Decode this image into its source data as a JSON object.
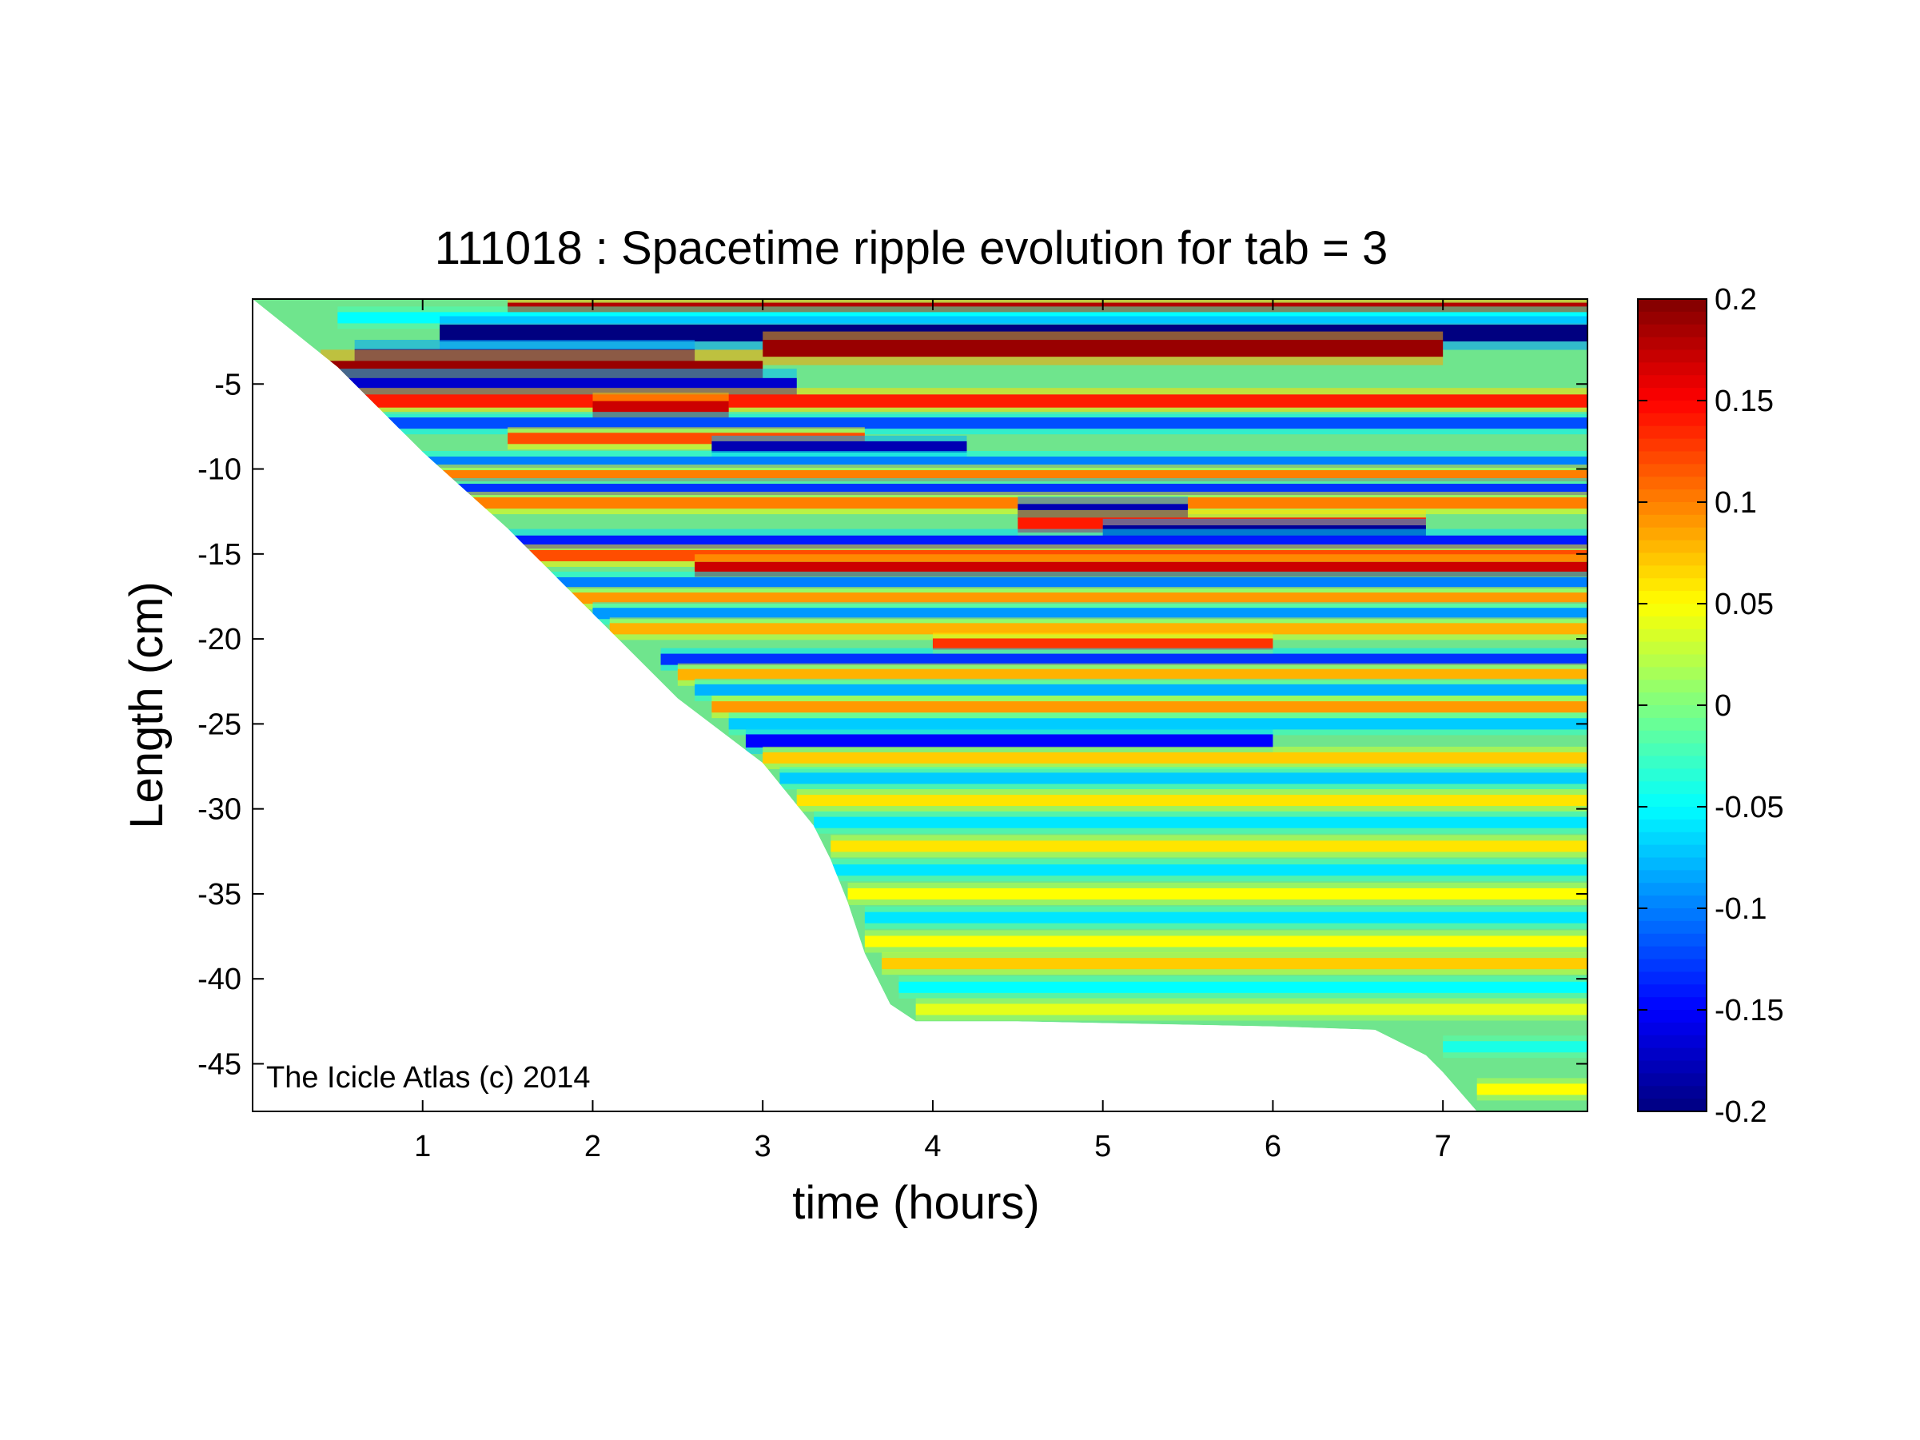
{
  "chart_data": {
    "type": "heatmap",
    "title": "111018 : Spacetime ripple evolution for tab = 3",
    "xlabel": "time (hours)",
    "ylabel": "Length (cm)",
    "xlim": [
      0,
      7.85
    ],
    "ylim": [
      -47.8,
      0
    ],
    "x_ticks": [
      1,
      2,
      3,
      4,
      5,
      6,
      7
    ],
    "x_tick_labels": [
      "1",
      "2",
      "3",
      "4",
      "5",
      "6",
      "7"
    ],
    "y_ticks": [
      -5,
      -10,
      -15,
      -20,
      -25,
      -30,
      -35,
      -40,
      -45
    ],
    "y_tick_labels": [
      "-5",
      "-10",
      "-15",
      "-20",
      "-25",
      "-30",
      "-35",
      "-40",
      "-45"
    ],
    "colorbar": {
      "colormap": "jet",
      "clim": [
        -0.2,
        0.2
      ],
      "ticks": [
        0.2,
        0.15,
        0.1,
        0.05,
        0,
        -0.05,
        -0.1,
        -0.15,
        -0.2
      ],
      "tick_labels": [
        "0.2",
        "0.15",
        "0.1",
        "0.05",
        "0",
        "-0.05",
        "-0.1",
        "-0.15",
        "-0.2"
      ]
    },
    "annotation": "The Icicle Atlas (c) 2014",
    "grid": false,
    "icicle_tip_boundary": {
      "time_hours": [
        0,
        0.5,
        1.0,
        1.5,
        2.0,
        2.5,
        3.0,
        3.3,
        3.4,
        3.5,
        3.6,
        3.75,
        3.9,
        4.5,
        6.0,
        6.6,
        6.9,
        7.0,
        7.2,
        7.85
      ],
      "length_cm": [
        0,
        -4.0,
        -9.0,
        -13.5,
        -18.5,
        -23.5,
        -27.3,
        -31.0,
        -33.0,
        -35.5,
        -38.5,
        -41.5,
        -42.5,
        -42.5,
        -42.8,
        -43.0,
        -44.5,
        -45.5,
        -47.8,
        -47.8
      ]
    },
    "colors": {
      "neutral": "#6fe58d",
      "positive_extreme": "#800000",
      "negative_extreme": "#00008f"
    },
    "ripple_bands": [
      {
        "y": -0.6,
        "value": 0.18,
        "width": 0.35,
        "t0": 1.5,
        "t1": 7.85
      },
      {
        "y": -1.1,
        "value": -0.05,
        "width": 0.3,
        "t0": 0.5,
        "t1": 7.85
      },
      {
        "y": -2.0,
        "value": -0.2,
        "width": 0.45,
        "t0": 1.1,
        "t1": 7.85
      },
      {
        "y": -2.9,
        "value": 0.19,
        "width": 0.45,
        "t0": 3.0,
        "t1": 7.0
      },
      {
        "y": -3.5,
        "value": -0.19,
        "width": 0.5,
        "t0": 0.6,
        "t1": 2.6
      },
      {
        "y": -4.3,
        "value": 0.19,
        "width": 0.6,
        "t0": 0.4,
        "t1": 3.0
      },
      {
        "y": -5.2,
        "value": -0.17,
        "width": 0.5,
        "t0": 0.5,
        "t1": 3.2
      },
      {
        "y": -6.0,
        "value": 0.14,
        "width": 0.35,
        "t0": 0.6,
        "t1": 7.85
      },
      {
        "y": -6.5,
        "value": 0.17,
        "width": 0.45,
        "t0": 2.0,
        "t1": 2.8
      },
      {
        "y": -7.3,
        "value": -0.12,
        "width": 0.3,
        "t0": 0.6,
        "t1": 7.85
      },
      {
        "y": -8.2,
        "value": 0.12,
        "width": 0.3,
        "t0": 1.5,
        "t1": 3.6
      },
      {
        "y": -8.7,
        "value": -0.18,
        "width": 0.3,
        "t0": 2.7,
        "t1": 4.2
      },
      {
        "y": -9.6,
        "value": -0.1,
        "width": 0.3,
        "t0": 0.8,
        "t1": 7.85
      },
      {
        "y": -10.4,
        "value": 0.1,
        "width": 0.3,
        "t0": 1.0,
        "t1": 7.85
      },
      {
        "y": -11.2,
        "value": -0.13,
        "width": 0.3,
        "t0": 1.0,
        "t1": 7.85
      },
      {
        "y": -12.0,
        "value": 0.1,
        "width": 0.3,
        "t0": 1.2,
        "t1": 7.85
      },
      {
        "y": -12.5,
        "value": -0.18,
        "width": 0.4,
        "t0": 4.5,
        "t1": 5.5
      },
      {
        "y": -13.3,
        "value": 0.14,
        "width": 0.4,
        "t0": 4.5,
        "t1": 6.9
      },
      {
        "y": -13.7,
        "value": -0.19,
        "width": 0.35,
        "t0": 5.0,
        "t1": 6.9
      },
      {
        "y": -14.3,
        "value": -0.14,
        "width": 0.35,
        "t0": 1.3,
        "t1": 7.85
      },
      {
        "y": -15.1,
        "value": 0.12,
        "width": 0.3,
        "t0": 1.4,
        "t1": 7.85
      },
      {
        "y": -15.9,
        "value": 0.17,
        "width": 0.4,
        "t0": 2.6,
        "t1": 7.85
      },
      {
        "y": -16.7,
        "value": -0.1,
        "width": 0.3,
        "t0": 1.6,
        "t1": 7.85
      },
      {
        "y": -17.6,
        "value": 0.09,
        "width": 0.3,
        "t0": 1.8,
        "t1": 7.85
      },
      {
        "y": -18.5,
        "value": -0.09,
        "width": 0.3,
        "t0": 2.0,
        "t1": 7.85
      },
      {
        "y": -19.4,
        "value": 0.08,
        "width": 0.3,
        "t0": 2.1,
        "t1": 7.85
      },
      {
        "y": -20.3,
        "value": 0.13,
        "width": 0.3,
        "t0": 4.0,
        "t1": 6.0
      },
      {
        "y": -21.2,
        "value": -0.13,
        "width": 0.3,
        "t0": 2.4,
        "t1": 7.85
      },
      {
        "y": -22.1,
        "value": 0.08,
        "width": 0.3,
        "t0": 2.5,
        "t1": 7.85
      },
      {
        "y": -23.0,
        "value": -0.08,
        "width": 0.3,
        "t0": 2.6,
        "t1": 7.85
      },
      {
        "y": -24.0,
        "value": 0.09,
        "width": 0.3,
        "t0": 2.7,
        "t1": 7.85
      },
      {
        "y": -25.0,
        "value": -0.07,
        "width": 0.3,
        "t0": 2.8,
        "t1": 7.85
      },
      {
        "y": -26.0,
        "value": -0.15,
        "width": 0.35,
        "t0": 2.9,
        "t1": 6.0
      },
      {
        "y": -27.0,
        "value": 0.07,
        "width": 0.3,
        "t0": 3.0,
        "t1": 7.85
      },
      {
        "y": -28.2,
        "value": -0.07,
        "width": 0.3,
        "t0": 3.1,
        "t1": 7.85
      },
      {
        "y": -29.5,
        "value": 0.06,
        "width": 0.3,
        "t0": 3.2,
        "t1": 7.85
      },
      {
        "y": -30.8,
        "value": -0.06,
        "width": 0.3,
        "t0": 3.3,
        "t1": 7.85
      },
      {
        "y": -32.2,
        "value": 0.06,
        "width": 0.3,
        "t0": 3.4,
        "t1": 7.85
      },
      {
        "y": -33.6,
        "value": -0.06,
        "width": 0.3,
        "t0": 3.4,
        "t1": 7.85
      },
      {
        "y": -35.0,
        "value": 0.05,
        "width": 0.3,
        "t0": 3.5,
        "t1": 7.85
      },
      {
        "y": -36.4,
        "value": -0.06,
        "width": 0.3,
        "t0": 3.6,
        "t1": 7.85
      },
      {
        "y": -37.8,
        "value": 0.05,
        "width": 0.3,
        "t0": 3.6,
        "t1": 7.85
      },
      {
        "y": -39.1,
        "value": 0.07,
        "width": 0.3,
        "t0": 3.7,
        "t1": 7.85
      },
      {
        "y": -40.5,
        "value": -0.05,
        "width": 0.3,
        "t0": 3.8,
        "t1": 7.85
      },
      {
        "y": -41.8,
        "value": 0.04,
        "width": 0.3,
        "t0": 3.9,
        "t1": 7.85
      },
      {
        "y": -44.0,
        "value": -0.04,
        "width": 0.3,
        "t0": 7.0,
        "t1": 7.85
      },
      {
        "y": -46.5,
        "value": 0.05,
        "width": 0.3,
        "t0": 7.2,
        "t1": 7.85
      }
    ]
  }
}
